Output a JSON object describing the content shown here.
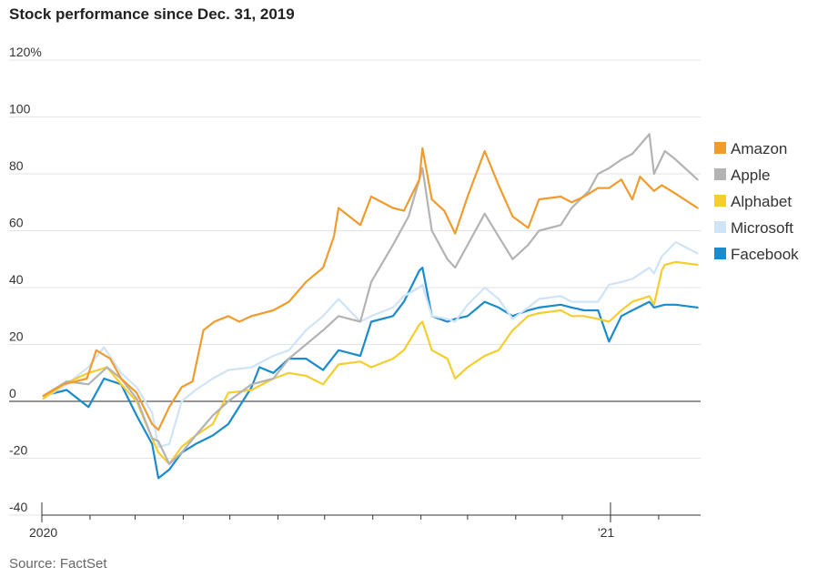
{
  "title": "Stock performance since Dec. 31, 2019",
  "source": "Source: FactSet",
  "chart_data": {
    "type": "line",
    "title": "Stock performance since Dec. 31, 2019",
    "ylim": [
      -40,
      120
    ],
    "yticks": [
      -40,
      -20,
      0,
      20,
      40,
      60,
      80,
      100,
      120
    ],
    "ytick_labels": [
      "-40",
      "-20",
      "0",
      "20",
      "40",
      "60",
      "80",
      "100",
      "120%"
    ],
    "x_start": "2020-01-01",
    "x_end": "2021-02-28",
    "xtick_labels": [
      {
        "date": "2020-01-01",
        "label": "2020"
      },
      {
        "date": "2021-01-01",
        "label": "'21"
      }
    ],
    "month_ticks": [
      "2020-01-01",
      "2020-02-01",
      "2020-03-01",
      "2020-04-01",
      "2020-05-01",
      "2020-06-01",
      "2020-07-01",
      "2020-08-01",
      "2020-09-01",
      "2020-10-01",
      "2020-11-01",
      "2020-12-01",
      "2021-01-01",
      "2021-02-01"
    ],
    "grid": true,
    "legend_position": "right",
    "series": [
      {
        "name": "Amazon",
        "color": "#f09c2d",
        "points": [
          [
            "2020-01-02",
            2
          ],
          [
            "2020-01-15",
            6
          ],
          [
            "2020-01-30",
            8
          ],
          [
            "2020-02-05",
            18
          ],
          [
            "2020-02-14",
            15
          ],
          [
            "2020-02-21",
            8
          ],
          [
            "2020-03-02",
            3
          ],
          [
            "2020-03-12",
            -8
          ],
          [
            "2020-03-16",
            -10
          ],
          [
            "2020-03-23",
            -2
          ],
          [
            "2020-03-31",
            5
          ],
          [
            "2020-04-07",
            7
          ],
          [
            "2020-04-14",
            25
          ],
          [
            "2020-04-21",
            28
          ],
          [
            "2020-04-30",
            30
          ],
          [
            "2020-05-07",
            28
          ],
          [
            "2020-05-15",
            30
          ],
          [
            "2020-05-29",
            32
          ],
          [
            "2020-06-08",
            35
          ],
          [
            "2020-06-19",
            42
          ],
          [
            "2020-06-30",
            47
          ],
          [
            "2020-07-07",
            58
          ],
          [
            "2020-07-10",
            68
          ],
          [
            "2020-07-17",
            65
          ],
          [
            "2020-07-24",
            62
          ],
          [
            "2020-07-31",
            72
          ],
          [
            "2020-08-14",
            68
          ],
          [
            "2020-08-21",
            67
          ],
          [
            "2020-08-31",
            78
          ],
          [
            "2020-09-02",
            89
          ],
          [
            "2020-09-08",
            71
          ],
          [
            "2020-09-16",
            67
          ],
          [
            "2020-09-23",
            59
          ],
          [
            "2020-10-01",
            72
          ],
          [
            "2020-10-12",
            88
          ],
          [
            "2020-10-21",
            76
          ],
          [
            "2020-10-30",
            65
          ],
          [
            "2020-11-09",
            61
          ],
          [
            "2020-11-16",
            71
          ],
          [
            "2020-11-30",
            72
          ],
          [
            "2020-12-07",
            70
          ],
          [
            "2020-12-15",
            72
          ],
          [
            "2020-12-24",
            75
          ],
          [
            "2020-12-31",
            75
          ],
          [
            "2021-01-08",
            78
          ],
          [
            "2021-01-15",
            71
          ],
          [
            "2021-01-20",
            79
          ],
          [
            "2021-01-29",
            74
          ],
          [
            "2021-02-03",
            76
          ],
          [
            "2021-02-12",
            73
          ],
          [
            "2021-02-26",
            68
          ]
        ]
      },
      {
        "name": "Apple",
        "color": "#b3b3b3",
        "points": [
          [
            "2020-01-02",
            2
          ],
          [
            "2020-01-17",
            7
          ],
          [
            "2020-01-31",
            6
          ],
          [
            "2020-02-12",
            12
          ],
          [
            "2020-02-21",
            8
          ],
          [
            "2020-03-02",
            1
          ],
          [
            "2020-03-12",
            -13
          ],
          [
            "2020-03-16",
            -14
          ],
          [
            "2020-03-23",
            -22
          ],
          [
            "2020-03-31",
            -18
          ],
          [
            "2020-04-09",
            -12
          ],
          [
            "2020-04-20",
            -5
          ],
          [
            "2020-04-30",
            0
          ],
          [
            "2020-05-15",
            6
          ],
          [
            "2020-05-29",
            8
          ],
          [
            "2020-06-08",
            15
          ],
          [
            "2020-06-19",
            20
          ],
          [
            "2020-06-30",
            25
          ],
          [
            "2020-07-10",
            30
          ],
          [
            "2020-07-24",
            28
          ],
          [
            "2020-07-31",
            42
          ],
          [
            "2020-08-14",
            55
          ],
          [
            "2020-08-24",
            65
          ],
          [
            "2020-08-31",
            78
          ],
          [
            "2020-09-02",
            82
          ],
          [
            "2020-09-08",
            60
          ],
          [
            "2020-09-18",
            50
          ],
          [
            "2020-09-23",
            47
          ],
          [
            "2020-10-01",
            55
          ],
          [
            "2020-10-12",
            66
          ],
          [
            "2020-10-21",
            58
          ],
          [
            "2020-10-30",
            50
          ],
          [
            "2020-11-09",
            55
          ],
          [
            "2020-11-16",
            60
          ],
          [
            "2020-11-30",
            62
          ],
          [
            "2020-12-07",
            68
          ],
          [
            "2020-12-18",
            74
          ],
          [
            "2020-12-24",
            80
          ],
          [
            "2020-12-31",
            82
          ],
          [
            "2021-01-08",
            85
          ],
          [
            "2021-01-15",
            87
          ],
          [
            "2021-01-26",
            94
          ],
          [
            "2021-01-29",
            80
          ],
          [
            "2021-02-05",
            88
          ],
          [
            "2021-02-12",
            85
          ],
          [
            "2021-02-26",
            78
          ]
        ]
      },
      {
        "name": "Alphabet",
        "color": "#f5cd2e",
        "points": [
          [
            "2020-01-02",
            1
          ],
          [
            "2020-01-15",
            6
          ],
          [
            "2020-01-31",
            10
          ],
          [
            "2020-02-12",
            12
          ],
          [
            "2020-02-21",
            6
          ],
          [
            "2020-03-02",
            0
          ],
          [
            "2020-03-12",
            -13
          ],
          [
            "2020-03-16",
            -18
          ],
          [
            "2020-03-23",
            -22
          ],
          [
            "2020-03-31",
            -16
          ],
          [
            "2020-04-09",
            -12
          ],
          [
            "2020-04-20",
            -8
          ],
          [
            "2020-04-30",
            3
          ],
          [
            "2020-05-15",
            4
          ],
          [
            "2020-05-29",
            8
          ],
          [
            "2020-06-08",
            10
          ],
          [
            "2020-06-19",
            9
          ],
          [
            "2020-06-30",
            6
          ],
          [
            "2020-07-10",
            13
          ],
          [
            "2020-07-24",
            14
          ],
          [
            "2020-07-31",
            12
          ],
          [
            "2020-08-14",
            15
          ],
          [
            "2020-08-21",
            18
          ],
          [
            "2020-08-31",
            27
          ],
          [
            "2020-09-02",
            28
          ],
          [
            "2020-09-08",
            18
          ],
          [
            "2020-09-18",
            15
          ],
          [
            "2020-09-23",
            8
          ],
          [
            "2020-10-01",
            12
          ],
          [
            "2020-10-12",
            16
          ],
          [
            "2020-10-21",
            18
          ],
          [
            "2020-10-30",
            25
          ],
          [
            "2020-11-09",
            30
          ],
          [
            "2020-11-16",
            31
          ],
          [
            "2020-11-30",
            32
          ],
          [
            "2020-12-07",
            30
          ],
          [
            "2020-12-15",
            30
          ],
          [
            "2020-12-24",
            29
          ],
          [
            "2020-12-31",
            28
          ],
          [
            "2021-01-08",
            32
          ],
          [
            "2021-01-15",
            35
          ],
          [
            "2021-01-26",
            37
          ],
          [
            "2021-01-29",
            34
          ],
          [
            "2021-02-03",
            46
          ],
          [
            "2021-02-05",
            48
          ],
          [
            "2021-02-12",
            49
          ],
          [
            "2021-02-26",
            48
          ]
        ]
      },
      {
        "name": "Microsoft",
        "color": "#cfe4f6",
        "points": [
          [
            "2020-01-02",
            1
          ],
          [
            "2020-01-17",
            6
          ],
          [
            "2020-01-31",
            12
          ],
          [
            "2020-02-10",
            19
          ],
          [
            "2020-02-21",
            10
          ],
          [
            "2020-03-02",
            5
          ],
          [
            "2020-03-12",
            -4
          ],
          [
            "2020-03-16",
            -16
          ],
          [
            "2020-03-23",
            -15
          ],
          [
            "2020-03-31",
            0
          ],
          [
            "2020-04-09",
            4
          ],
          [
            "2020-04-20",
            8
          ],
          [
            "2020-04-30",
            11
          ],
          [
            "2020-05-15",
            12
          ],
          [
            "2020-05-29",
            16
          ],
          [
            "2020-06-08",
            18
          ],
          [
            "2020-06-19",
            25
          ],
          [
            "2020-06-30",
            30
          ],
          [
            "2020-07-10",
            36
          ],
          [
            "2020-07-24",
            28
          ],
          [
            "2020-07-31",
            30
          ],
          [
            "2020-08-14",
            33
          ],
          [
            "2020-08-21",
            37
          ],
          [
            "2020-08-31",
            40
          ],
          [
            "2020-09-02",
            41
          ],
          [
            "2020-09-08",
            30
          ],
          [
            "2020-09-18",
            29
          ],
          [
            "2020-09-23",
            28
          ],
          [
            "2020-10-01",
            34
          ],
          [
            "2020-10-12",
            40
          ],
          [
            "2020-10-21",
            36
          ],
          [
            "2020-10-30",
            29
          ],
          [
            "2020-11-09",
            33
          ],
          [
            "2020-11-16",
            36
          ],
          [
            "2020-11-30",
            37
          ],
          [
            "2020-12-07",
            35
          ],
          [
            "2020-12-15",
            35
          ],
          [
            "2020-12-24",
            35
          ],
          [
            "2020-12-31",
            41
          ],
          [
            "2021-01-08",
            42
          ],
          [
            "2021-01-15",
            43
          ],
          [
            "2021-01-26",
            47
          ],
          [
            "2021-01-29",
            45
          ],
          [
            "2021-02-03",
            51
          ],
          [
            "2021-02-12",
            56
          ],
          [
            "2021-02-26",
            52
          ]
        ]
      },
      {
        "name": "Facebook",
        "color": "#1a8bcc",
        "points": [
          [
            "2020-01-02",
            2
          ],
          [
            "2020-01-17",
            4
          ],
          [
            "2020-01-31",
            -2
          ],
          [
            "2020-02-10",
            8
          ],
          [
            "2020-02-21",
            6
          ],
          [
            "2020-03-02",
            -5
          ],
          [
            "2020-03-12",
            -15
          ],
          [
            "2020-03-16",
            -27
          ],
          [
            "2020-03-23",
            -24
          ],
          [
            "2020-03-31",
            -18
          ],
          [
            "2020-04-09",
            -15
          ],
          [
            "2020-04-20",
            -12
          ],
          [
            "2020-04-30",
            -8
          ],
          [
            "2020-05-15",
            5
          ],
          [
            "2020-05-20",
            12
          ],
          [
            "2020-05-29",
            10
          ],
          [
            "2020-06-08",
            15
          ],
          [
            "2020-06-19",
            15
          ],
          [
            "2020-06-30",
            11
          ],
          [
            "2020-07-10",
            18
          ],
          [
            "2020-07-24",
            16
          ],
          [
            "2020-07-31",
            28
          ],
          [
            "2020-08-14",
            30
          ],
          [
            "2020-08-21",
            35
          ],
          [
            "2020-08-31",
            46
          ],
          [
            "2020-09-02",
            47
          ],
          [
            "2020-09-08",
            30
          ],
          [
            "2020-09-18",
            28
          ],
          [
            "2020-09-23",
            29
          ],
          [
            "2020-10-01",
            30
          ],
          [
            "2020-10-12",
            35
          ],
          [
            "2020-10-21",
            33
          ],
          [
            "2020-10-30",
            30
          ],
          [
            "2020-11-09",
            32
          ],
          [
            "2020-11-16",
            33
          ],
          [
            "2020-11-30",
            34
          ],
          [
            "2020-12-07",
            33
          ],
          [
            "2020-12-15",
            32
          ],
          [
            "2020-12-24",
            32
          ],
          [
            "2020-12-31",
            21
          ],
          [
            "2021-01-08",
            30
          ],
          [
            "2021-01-15",
            32
          ],
          [
            "2021-01-26",
            35
          ],
          [
            "2021-01-29",
            33
          ],
          [
            "2021-02-05",
            34
          ],
          [
            "2021-02-12",
            34
          ],
          [
            "2021-02-26",
            33
          ]
        ]
      }
    ]
  }
}
